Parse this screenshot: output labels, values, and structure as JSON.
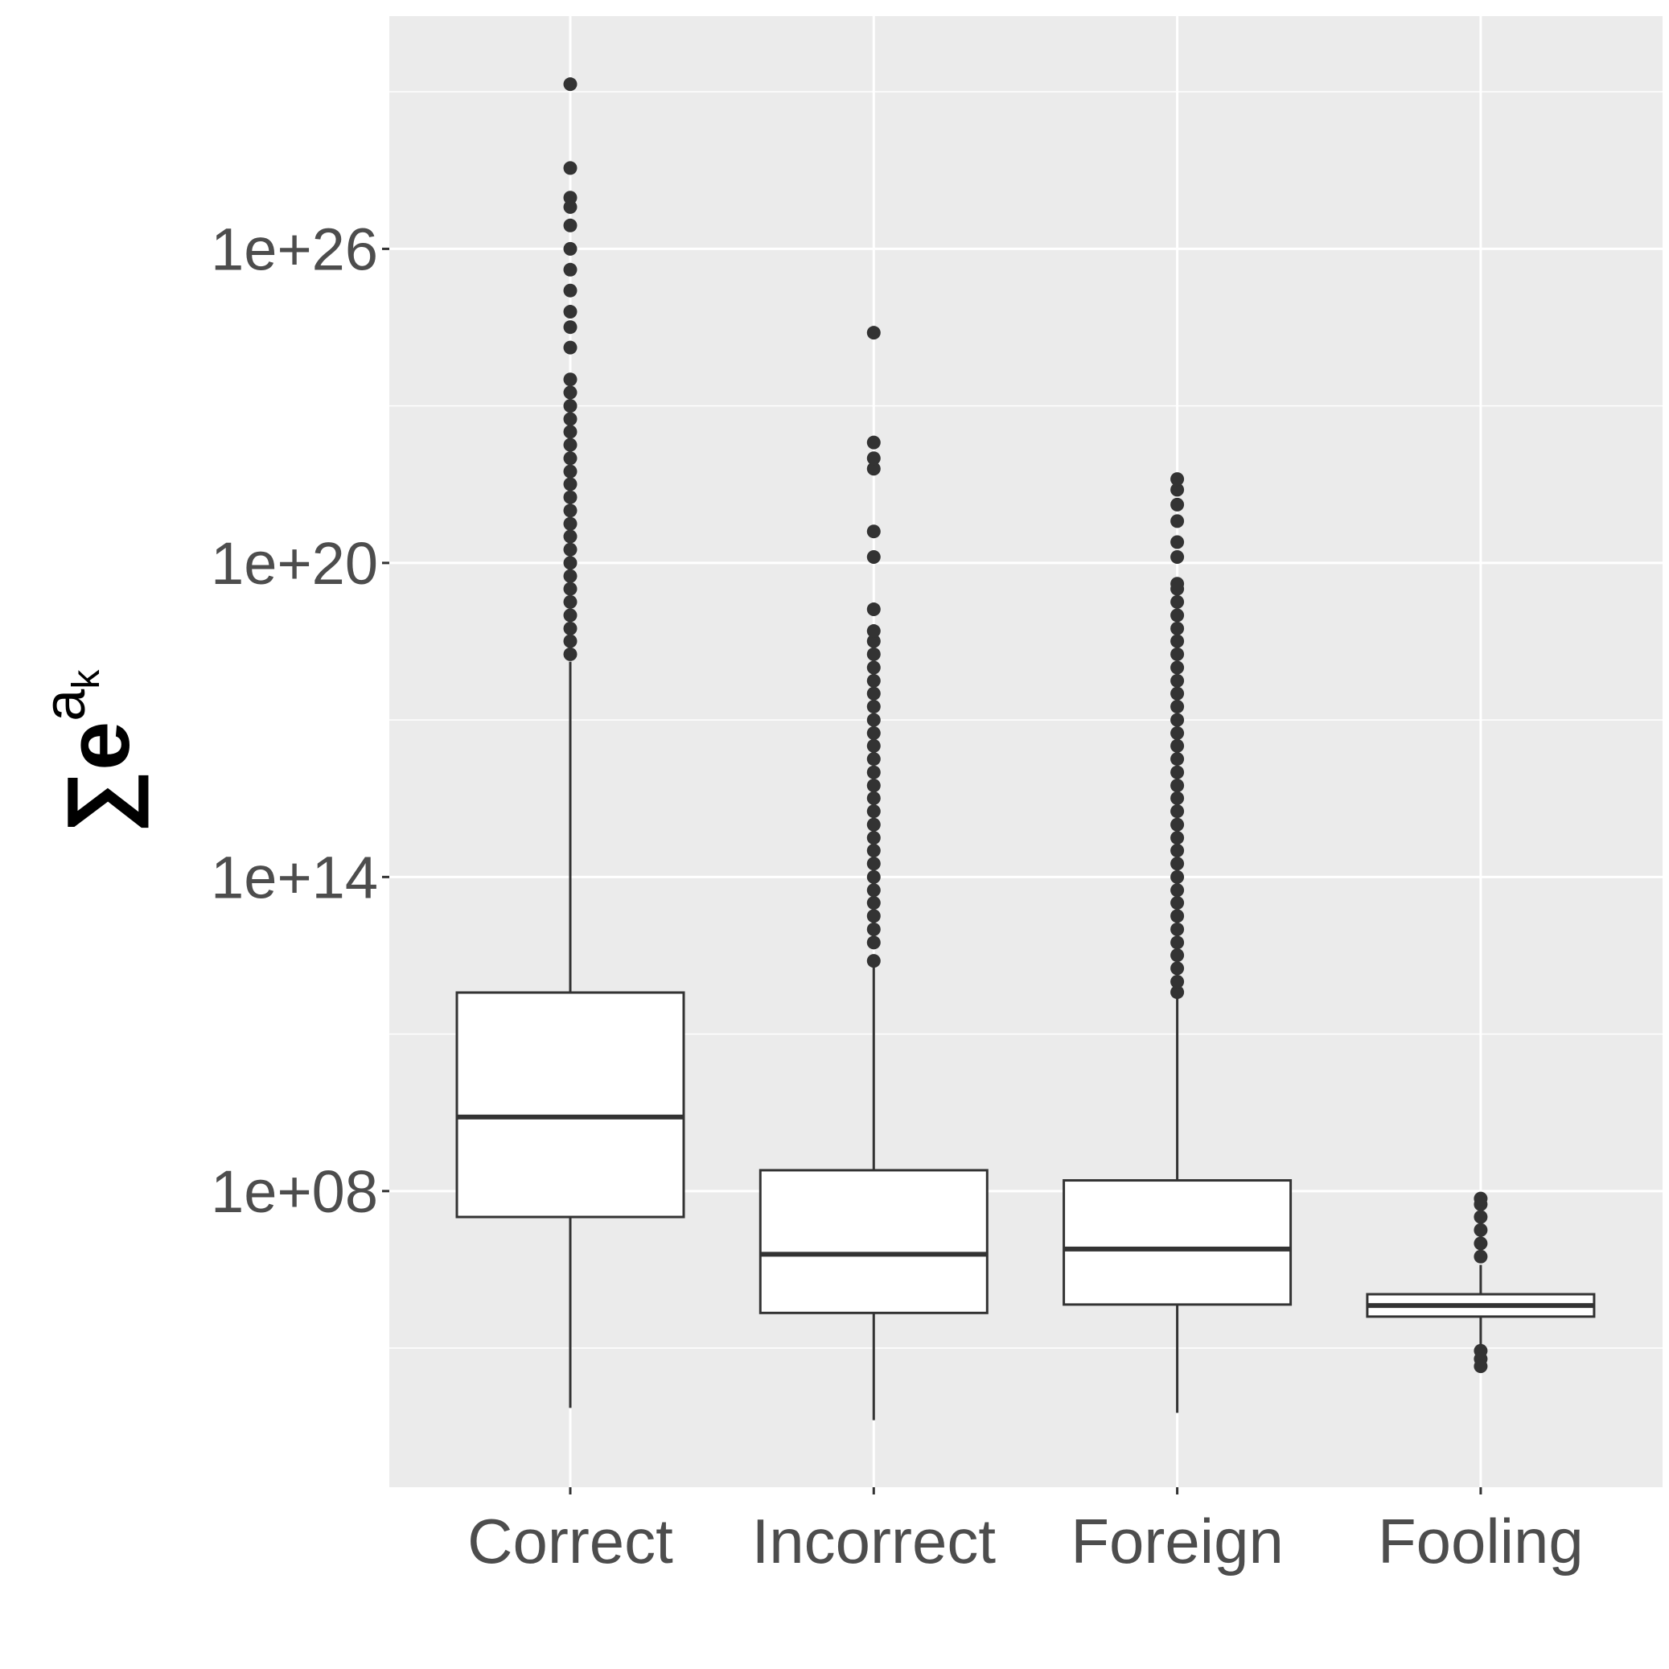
{
  "chart_data": {
    "type": "boxplot",
    "y_label": {
      "base": "∑e",
      "sup": "a",
      "sub": "k"
    },
    "log_scale": true,
    "grid": true,
    "panel_color": "#ebebeb",
    "box_color": "#333333",
    "outlier_color": "#333333",
    "ylim": [
      220,
      2.8e+30
    ],
    "yticks": [
      {
        "value": 100000000.0,
        "label": "1e+08"
      },
      {
        "value": 100000000000000.0,
        "label": "1e+14"
      },
      {
        "value": 1e+20,
        "label": "1e+20"
      },
      {
        "value": 1e+26,
        "label": "1e+26"
      }
    ],
    "minor_yticks": [
      100000.0,
      100000000000.0,
      1e+17,
      1e+23,
      1e+29
    ],
    "categories": [
      "Correct",
      "Incorrect",
      "Foreign",
      "Fooling"
    ],
    "boxes": [
      {
        "low": 7200.0,
        "q1": 32000000.0,
        "median": 2600000000.0,
        "q3": 620000000000.0,
        "high": 1.3e+18
      },
      {
        "low": 4200.0,
        "q1": 470000.0,
        "median": 6200000.0,
        "q3": 250000000.0,
        "high": 2300000000000.0
      },
      {
        "low": 5800.0,
        "q1": 680000.0,
        "median": 7800000.0,
        "q3": 160000000.0,
        "high": 560000000000.0
      },
      {
        "low": 110000.0,
        "q1": 400000.0,
        "median": 650000.0,
        "q3": 1070000.0,
        "high": 3900000.0
      }
    ],
    "outliers": [
      [
        1.8e+18,
        3.2e+18,
        5.6e+18,
        1e+19,
        1.8e+19,
        3.2e+19,
        5.6e+19,
        1e+20,
        1.8e+20,
        3.2e+20,
        5.6e+20,
        1e+21,
        1.8e+21,
        3.2e+21,
        5.6e+21,
        1e+22,
        1.8e+22,
        3.2e+22,
        5.6e+22,
        1e+23,
        1.8e+23,
        3.2e+23,
        1.3e+24,
        3.2e+24,
        6.3e+24,
        1.6e+25,
        4e+25,
        1e+26,
        2.8e+26,
        6.3e+26,
        9.5e+26,
        3.5e+27,
        1.4e+29
      ],
      [
        2500000000000.0,
        5600000000000.0,
        10000000000000.0,
        18000000000000.0,
        32000000000000.0,
        56000000000000.0,
        100000000000000.0,
        180000000000000.0,
        320000000000000.0,
        560000000000000.0,
        1000000000000000.0,
        1800000000000000.0,
        3200000000000000.0,
        5600000000000000.0,
        1e+16,
        1.8e+16,
        3.2e+16,
        5.6e+16,
        1e+17,
        1.8e+17,
        3.2e+17,
        5.6e+17,
        1e+18,
        1.8e+18,
        3.2e+18,
        5e+18,
        1.3e+19,
        1.3e+20,
        4e+20,
        6.3e+21,
        1e+22,
        2e+22,
        2.5e+24
      ],
      [
        630000000000.0,
        1000000000000.0,
        1800000000000.0,
        3200000000000.0,
        5600000000000.0,
        10000000000000.0,
        18000000000000.0,
        32000000000000.0,
        56000000000000.0,
        100000000000000.0,
        180000000000000.0,
        320000000000000.0,
        560000000000000.0,
        1000000000000000.0,
        1800000000000000.0,
        3200000000000000.0,
        5600000000000000.0,
        1e+16,
        1.8e+16,
        3.2e+16,
        5.6e+16,
        1e+17,
        1.8e+17,
        3.2e+17,
        5.6e+17,
        1e+18,
        1.8e+18,
        3.2e+18,
        5.6e+18,
        1e+19,
        1.8e+19,
        3.2e+19,
        4e+19,
        1.3e+20,
        2.5e+20,
        6.3e+20,
        1.3e+21,
        2.5e+21,
        4e+21
      ],
      [
        5600000.0,
        10000000.0,
        18000000.0,
        32000000.0,
        56000000.0,
        72000000.0,
        89000.0,
        62000.0,
        45000.0
      ]
    ]
  }
}
